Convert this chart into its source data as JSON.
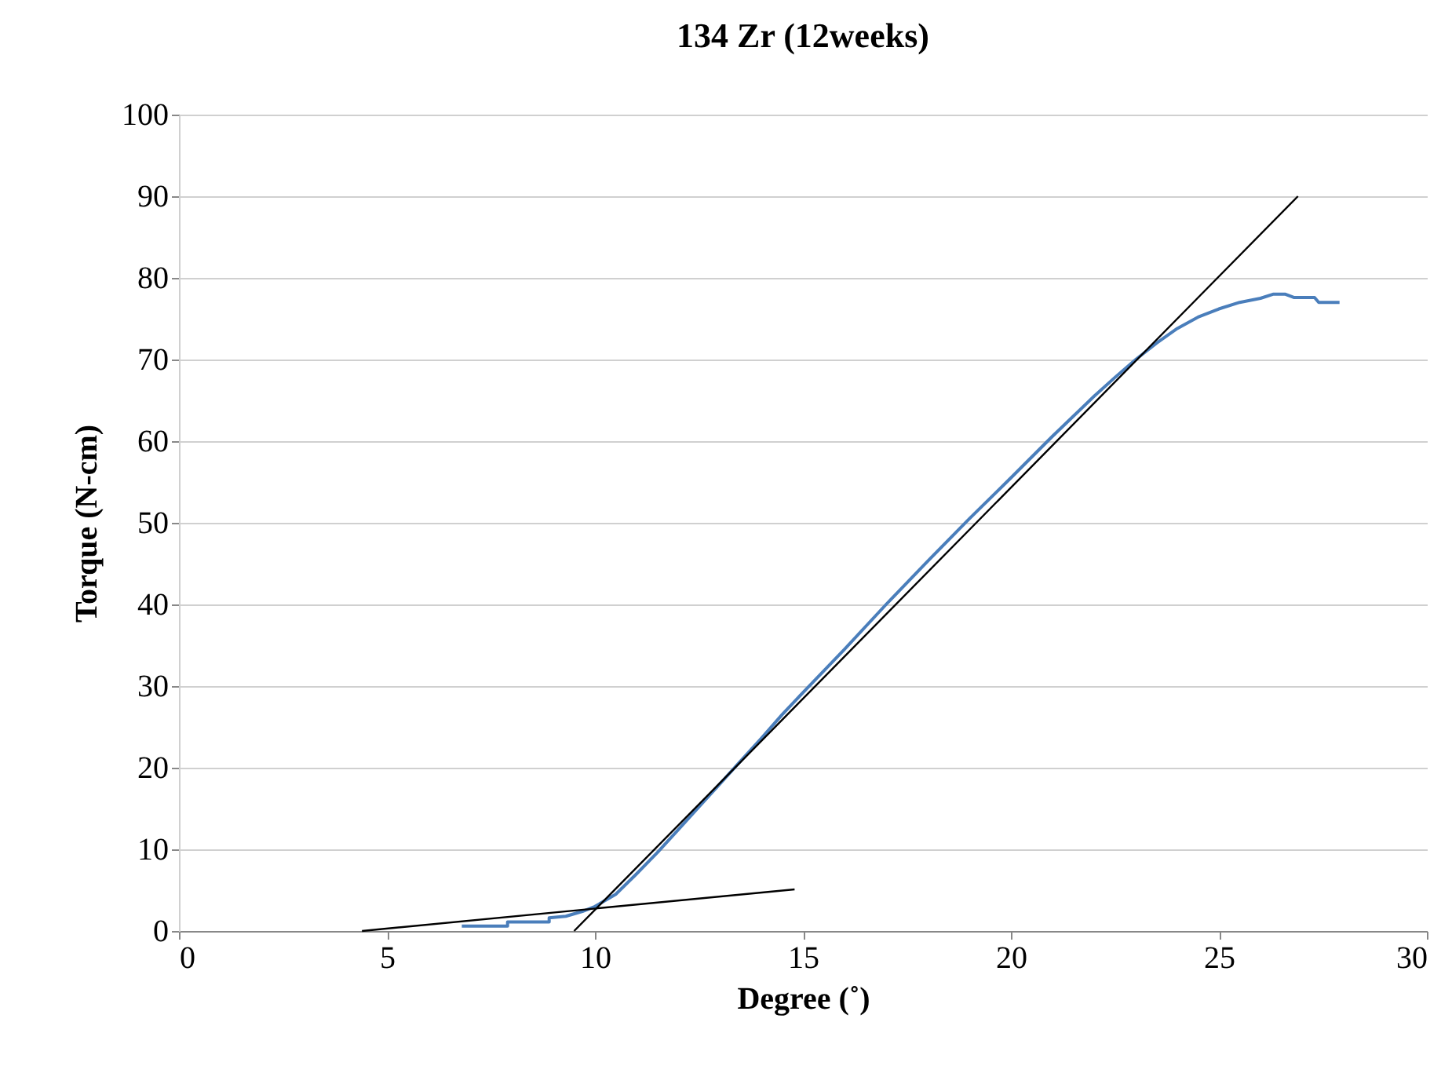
{
  "chart_data": {
    "type": "line",
    "title": "134 Zr (12weeks)",
    "xlabel": "Degree (˚)",
    "ylabel": "Torque (N-cm)",
    "xlim": [
      0,
      30
    ],
    "xticks": [
      0,
      5,
      10,
      15,
      20,
      25,
      30
    ],
    "ylim": [
      0,
      100
    ],
    "yticks": [
      0,
      10,
      20,
      30,
      40,
      50,
      60,
      70,
      80,
      90,
      100
    ],
    "grid": "y",
    "marker": "none",
    "line_style": "solid",
    "series": [
      {
        "color": "#4a7ebb",
        "x": [
          6.8,
          7.9,
          7.9,
          8.9,
          8.9,
          9.3,
          9.7,
          10,
          10.5,
          11,
          11.5,
          12,
          12.5,
          13,
          13.5,
          14,
          14.5,
          15,
          16,
          17,
          18,
          19,
          20,
          21,
          22,
          22.5,
          23,
          23.5,
          24,
          24.5,
          25,
          25.5,
          26,
          26.3,
          26.6,
          26.8,
          27.3,
          27.4,
          27.9
        ],
        "values": [
          0.6,
          0.6,
          1.1,
          1.1,
          1.6,
          1.8,
          2.4,
          3,
          4.5,
          7,
          9.6,
          12.4,
          15.2,
          18,
          20.8,
          23.6,
          26.5,
          29.2,
          34.5,
          40,
          45.3,
          50.5,
          55.5,
          60.6,
          65.5,
          67.8,
          70,
          72,
          73.8,
          75.2,
          76.2,
          77,
          77.5,
          78,
          78,
          77.6,
          77.6,
          77,
          77
        ]
      },
      {
        "type": "line",
        "color": "#000000",
        "x": [
          4.4,
          14.8
        ],
        "values": [
          0,
          5.1
        ]
      },
      {
        "type": "line",
        "color": "#000000",
        "x": [
          9.5,
          26.9
        ],
        "values": [
          0,
          90
        ]
      }
    ]
  }
}
